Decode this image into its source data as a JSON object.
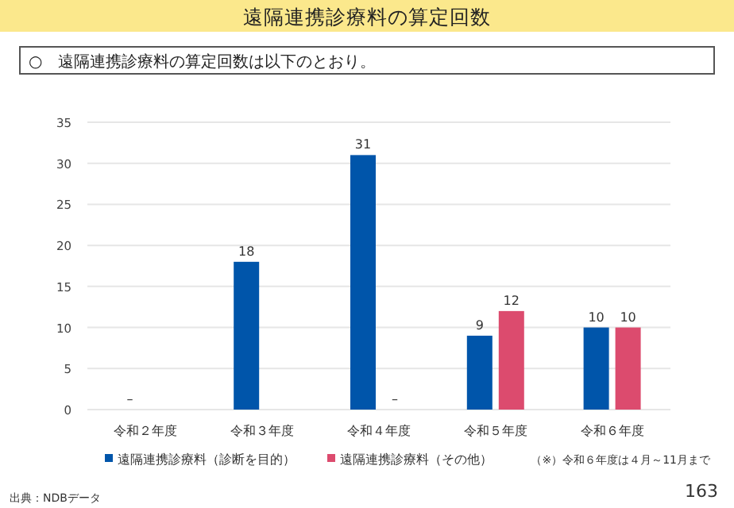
{
  "chart_data": {
    "type": "bar",
    "title": "遠隔連携診療料の算定回数",
    "subtitle": "○　遠隔連携診療料の算定回数は以下のとおり。",
    "categories": [
      "令和２年度",
      "令和３年度",
      "令和４年度",
      "令和５年度",
      "令和６年度"
    ],
    "series": [
      {
        "name": "遠隔連携診療料（診断を目的）",
        "color": "#0055aa",
        "values": [
          null,
          18,
          31,
          9,
          10
        ],
        "value_labels": [
          "–",
          "18",
          "31",
          "9",
          "10"
        ]
      },
      {
        "name": "遠隔連携診療料（その他）",
        "color": "#dc4b6e",
        "values": [
          null,
          null,
          null,
          12,
          10
        ],
        "value_labels": [
          null,
          null,
          "–",
          "12",
          "10"
        ]
      }
    ],
    "ylim": [
      0,
      35
    ],
    "yticks": [
      0,
      5,
      10,
      15,
      20,
      25,
      30,
      35
    ],
    "grid": "y",
    "legend": "bottom",
    "annotations": [
      "（※）令和６年度は４月～11月まで",
      "出典：NDBデータ",
      "163"
    ]
  }
}
